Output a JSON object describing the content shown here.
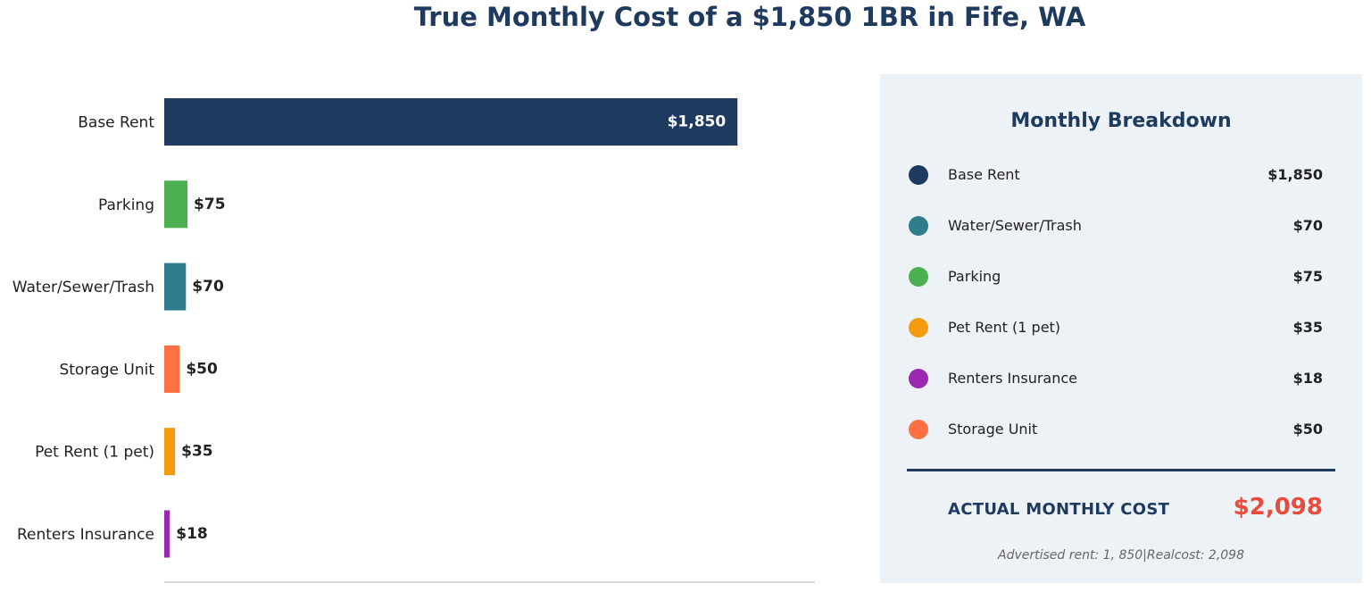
{
  "title": "True Monthly Cost of a $1,850 1BR in Fife, WA",
  "chart_data": {
    "type": "bar",
    "orientation": "horizontal",
    "categories": [
      "Base Rent",
      "Parking",
      "Water/Sewer/Trash",
      "Storage Unit",
      "Pet Rent (1 pet)",
      "Renters Insurance"
    ],
    "values": [
      1850,
      75,
      70,
      50,
      35,
      18
    ],
    "value_labels": [
      "$1,850",
      "$75",
      "$70",
      "$50",
      "$35",
      "$18"
    ],
    "colors": [
      "#1e3a5f",
      "#4caf50",
      "#2e7d8c",
      "#ff7043",
      "#f39c12",
      "#9c27b0"
    ],
    "xlim": [
      0,
      2100
    ],
    "grid": false
  },
  "breakdown": {
    "title": "Monthly Breakdown",
    "items": [
      {
        "label": "Base Rent",
        "value": "$1,850",
        "color": "#1e3a5f"
      },
      {
        "label": "Water/Sewer/Trash",
        "value": "$70",
        "color": "#2e7d8c"
      },
      {
        "label": "Parking",
        "value": "$75",
        "color": "#4caf50"
      },
      {
        "label": "Pet Rent (1 pet)",
        "value": "$35",
        "color": "#f39c12"
      },
      {
        "label": "Renters Insurance",
        "value": "$18",
        "color": "#9c27b0"
      },
      {
        "label": "Storage Unit",
        "value": "$50",
        "color": "#ff7043"
      }
    ],
    "total_label": "ACTUAL MONTHLY COST",
    "total_value": "$2,098",
    "footnote": "Advertised rent: 1, 850|Realcost: 2,098"
  }
}
